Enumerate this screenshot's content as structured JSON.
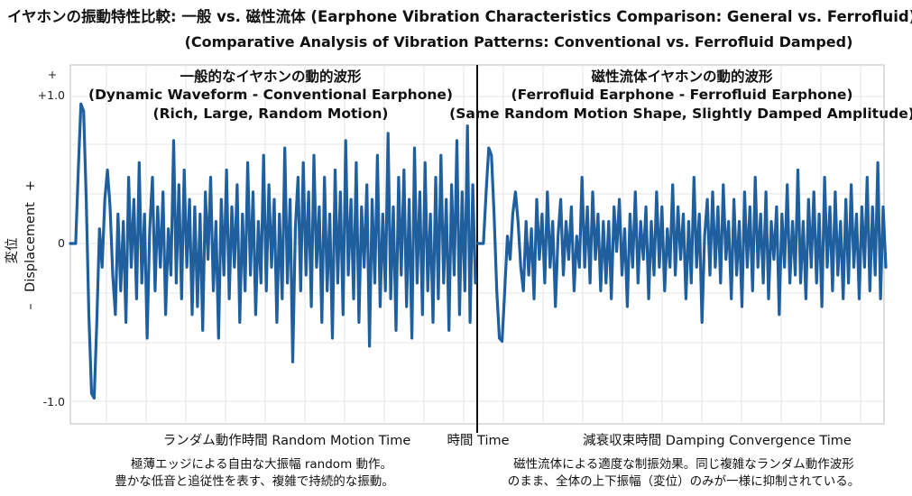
{
  "title": "イヤホンの振動特性比較: 一般 vs. 磁性流体 (Earphone Vibration Characteristics Comparison: General vs. Ferrofluid)",
  "subtitle": "(Comparative Analysis of Vibration Patterns: Conventional vs. Ferrofluid Damped)",
  "colors": {
    "line": "#1f5f9e",
    "divider": "#111111",
    "frame": "#bbbbbb"
  },
  "chart_data": {
    "type": "line",
    "ylabel": "変位 – Displacement +",
    "ylabel_jp": "変位",
    "ylabel_en": "Displacement",
    "y_plus": "+",
    "y_minus": "–",
    "ylim": [
      -1.0,
      1.0
    ],
    "yticks": [
      "+",
      "+1.0",
      "0",
      "-1.0"
    ],
    "xlabel_center": "時間 Time",
    "grid": true,
    "panels": [
      {
        "title_jp": "一般的なイヤホンの動的波形",
        "title_en": "(Dynamic Waveform - Conventional Earphone)",
        "caption": "(Rich, Large, Random Motion)",
        "xlabel": "ランダム動作時間 Random Motion Time",
        "note_line1": "極薄エッジによる自由な大振幅 random 動作。",
        "note_line2": "豊かな低音と追従性を表す、複雑で持続的な振動。",
        "series": [
          {
            "name": "",
            "x": [
              0,
              1,
              2,
              3,
              4,
              5,
              6,
              7,
              8,
              9,
              10,
              11,
              12,
              13,
              14,
              15,
              16,
              17,
              18,
              19,
              20,
              21,
              22,
              23,
              24,
              25,
              26,
              27,
              28,
              29,
              30,
              31,
              32,
              33,
              34,
              35,
              36,
              37,
              38,
              39,
              40,
              41,
              42,
              43,
              44,
              45,
              46,
              47,
              48,
              49,
              50,
              51,
              52,
              53,
              54,
              55,
              56,
              57,
              58,
              59,
              60,
              61,
              62,
              63,
              64,
              65,
              66,
              67,
              68,
              69,
              70,
              71,
              72,
              73,
              74,
              75,
              76,
              77,
              78,
              79,
              80,
              81,
              82,
              83,
              84,
              85,
              86,
              87,
              88,
              89,
              90,
              91,
              92,
              93,
              94,
              95,
              96,
              97,
              98,
              99,
              100,
              101,
              102,
              103,
              104,
              105,
              106,
              107,
              108,
              109,
              110,
              111,
              112,
              113,
              114,
              115,
              116,
              117,
              118,
              119,
              120,
              121,
              122,
              123,
              124,
              125,
              126,
              127,
              128,
              129,
              130,
              131,
              132,
              133,
              134,
              135,
              136,
              137,
              138,
              139,
              140,
              141,
              142,
              143,
              144,
              145,
              146,
              147,
              148,
              149,
              150,
              151,
              152,
              153
            ],
            "y": [
              0,
              0,
              0,
              0.5,
              0.95,
              0.9,
              0.3,
              -0.45,
              -0.95,
              -0.98,
              -0.5,
              0.1,
              -0.15,
              0.3,
              0.5,
              0.25,
              -0.2,
              -0.45,
              0.2,
              -0.3,
              0.15,
              -0.5,
              0.45,
              -0.15,
              0.3,
              -0.35,
              0.55,
              -0.25,
              0.2,
              -0.6,
              0.1,
              0.45,
              -0.3,
              0.25,
              -0.15,
              0.35,
              -0.45,
              0.1,
              -0.2,
              0.7,
              -0.25,
              0.4,
              -0.35,
              0.5,
              -0.15,
              0.3,
              -0.45,
              0.25,
              -0.4,
              0.2,
              -0.55,
              0.35,
              -0.1,
              0.45,
              -0.3,
              0.15,
              -0.6,
              0.3,
              -0.2,
              0.5,
              -0.35,
              0.25,
              -0.15,
              0.4,
              -0.5,
              0.2,
              -0.3,
              0.55,
              -0.2,
              0.35,
              -0.45,
              0.15,
              -0.25,
              0.6,
              -0.3,
              0.4,
              -0.15,
              0.3,
              -0.5,
              0.2,
              -0.35,
              0.65,
              -0.25,
              0.3,
              -0.75,
              0.1,
              0.45,
              -0.3,
              0.55,
              -0.2,
              0.35,
              -0.4,
              0.6,
              -0.15,
              0.25,
              -0.5,
              0.45,
              -0.3,
              0.2,
              -0.6,
              0.5,
              -0.25,
              0.35,
              -0.45,
              0.7,
              -0.2,
              0.3,
              -0.35,
              0.55,
              -0.5,
              0.25,
              -0.15,
              0.4,
              -0.65,
              0.3,
              -0.25,
              0.6,
              -0.4,
              0.2,
              -0.3,
              0.75,
              -0.35,
              0.25,
              -0.55,
              0.45,
              -0.2,
              0.5,
              -0.4,
              0.3,
              -0.6,
              0.65,
              -0.25,
              0.35,
              -0.45,
              0.55,
              -0.3,
              0.2,
              -0.5,
              0.45,
              -0.35,
              0.6,
              -0.25,
              0.3,
              -0.55,
              0.4,
              -0.2,
              0.7,
              -0.45,
              0.35,
              -0.3,
              0.8,
              -0.5,
              0.4,
              -0.25
            ]
          }
        ]
      },
      {
        "title_jp": "磁性流体イヤホンの動的波形",
        "title_en": "(Ferrofluid Earphone - Ferrofluid Earphone)",
        "caption": "(Same Random Motion Shape, Slightly Damped Amplitude)",
        "xlabel": "減衰収束時間 Damping Convergence Time",
        "note_line1": "磁性流体による適度な制振効果。同じ複雑なランダム動作波形",
        "note_line2": "のまま、全体の上下振幅（変位）のみが一様に抑制されている。",
        "series": [
          {
            "name": "",
            "x": [
              0,
              1,
              2,
              3,
              4,
              5,
              6,
              7,
              8,
              9,
              10,
              11,
              12,
              13,
              14,
              15,
              16,
              17,
              18,
              19,
              20,
              21,
              22,
              23,
              24,
              25,
              26,
              27,
              28,
              29,
              30,
              31,
              32,
              33,
              34,
              35,
              36,
              37,
              38,
              39,
              40,
              41,
              42,
              43,
              44,
              45,
              46,
              47,
              48,
              49,
              50,
              51,
              52,
              53,
              54,
              55,
              56,
              57,
              58,
              59,
              60,
              61,
              62,
              63,
              64,
              65,
              66,
              67,
              68,
              69,
              70,
              71,
              72,
              73,
              74,
              75,
              76,
              77,
              78,
              79,
              80,
              81,
              82,
              83,
              84,
              85,
              86,
              87,
              88,
              89,
              90,
              91,
              92,
              93,
              94,
              95,
              96,
              97,
              98,
              99,
              100,
              101,
              102,
              103,
              104,
              105,
              106,
              107,
              108,
              109,
              110,
              111,
              112,
              113,
              114,
              115,
              116,
              117,
              118,
              119,
              120,
              121,
              122,
              123,
              124,
              125,
              126,
              127,
              128,
              129,
              130,
              131,
              132,
              133,
              134,
              135,
              136,
              137,
              138,
              139,
              140,
              141,
              142,
              143,
              144,
              145,
              146,
              147,
              148,
              149,
              150,
              151,
              152,
              153
            ],
            "y": [
              0,
              0,
              0,
              0.35,
              0.65,
              0.6,
              0.2,
              -0.3,
              -0.6,
              -0.62,
              -0.3,
              0.05,
              -0.1,
              0.2,
              0.35,
              0.15,
              -0.15,
              -0.3,
              0.15,
              -0.2,
              0.1,
              -0.35,
              0.3,
              -0.1,
              0.2,
              -0.25,
              0.35,
              -0.15,
              0.15,
              -0.4,
              0.05,
              0.3,
              -0.2,
              0.15,
              -0.1,
              0.25,
              -0.3,
              0.05,
              -0.15,
              0.45,
              -0.15,
              0.25,
              -0.25,
              0.35,
              -0.1,
              0.2,
              -0.3,
              0.15,
              -0.25,
              0.15,
              -0.35,
              0.25,
              -0.05,
              0.3,
              -0.2,
              0.1,
              -0.4,
              0.2,
              -0.15,
              0.35,
              -0.25,
              0.15,
              -0.1,
              0.25,
              -0.35,
              0.15,
              -0.2,
              0.35,
              -0.15,
              0.25,
              -0.3,
              0.1,
              -0.15,
              0.4,
              -0.2,
              0.25,
              -0.1,
              0.2,
              -0.35,
              0.15,
              -0.25,
              0.45,
              -0.15,
              0.2,
              -0.5,
              0.05,
              0.3,
              -0.2,
              0.35,
              -0.15,
              0.25,
              -0.25,
              0.4,
              -0.1,
              0.15,
              -0.35,
              0.3,
              -0.2,
              0.15,
              -0.4,
              0.35,
              -0.15,
              0.25,
              -0.3,
              0.45,
              -0.15,
              0.2,
              -0.25,
              0.35,
              -0.35,
              0.15,
              -0.1,
              0.25,
              -0.45,
              0.2,
              -0.15,
              0.4,
              -0.25,
              0.15,
              -0.2,
              0.5,
              -0.25,
              0.15,
              -0.35,
              0.3,
              -0.15,
              0.35,
              -0.25,
              0.2,
              -0.4,
              0.45,
              -0.15,
              0.25,
              -0.3,
              0.35,
              -0.2,
              0.15,
              -0.35,
              0.3,
              -0.25,
              0.4,
              -0.15,
              0.2,
              -0.35,
              0.25,
              -0.15,
              0.45,
              -0.3,
              0.25,
              -0.2,
              0.55,
              -0.35,
              0.25,
              -0.15
            ]
          }
        ]
      }
    ]
  }
}
